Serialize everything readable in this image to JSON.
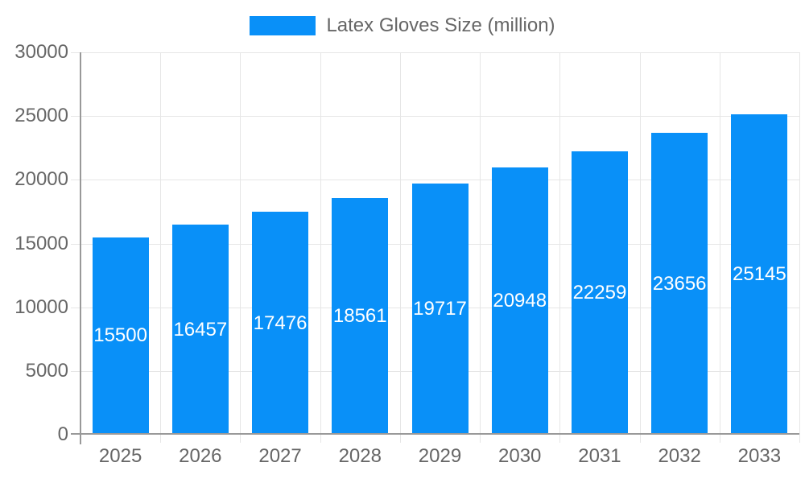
{
  "chart_data": {
    "type": "bar",
    "legend": "Latex Gloves Size (million)",
    "legend_position": "top",
    "categories": [
      "2025",
      "2026",
      "2027",
      "2028",
      "2029",
      "2030",
      "2031",
      "2032",
      "2033"
    ],
    "values": [
      15500,
      16457,
      17476,
      18561,
      19717,
      20948,
      22259,
      23656,
      25145
    ],
    "value_labels": [
      "15500",
      "16457",
      "17476",
      "18561",
      "19717",
      "20948",
      "22259",
      "23656",
      "25145"
    ],
    "ylim": [
      0,
      30000
    ],
    "ytick_interval": 5000,
    "yticks": [
      "0",
      "5000",
      "10000",
      "15000",
      "20000",
      "25000",
      "30000"
    ],
    "xlabel": "",
    "ylabel": "",
    "grid": true,
    "colors": {
      "bar": "#0990f8",
      "value_label": "#ffffff",
      "axis_text": "#666666",
      "grid_line": "#e6e6e6",
      "axis_line": "#999999",
      "background": "#ffffff"
    }
  }
}
